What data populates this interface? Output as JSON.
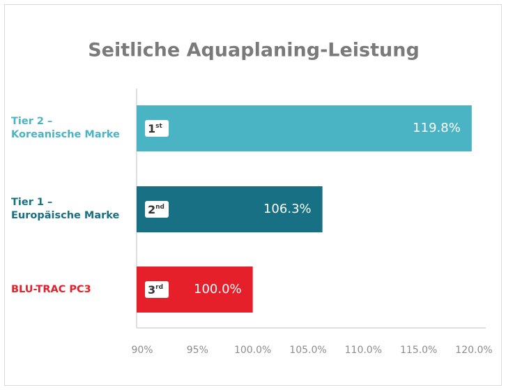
{
  "chart_data": {
    "type": "bar",
    "orientation": "horizontal",
    "title": "Seitliche Aquaplaning-Leistung",
    "categories": [
      "Tier 2 –\nKoreanische Marke",
      "Tier 1 –\nEuropäische Marke",
      "BLU-TRAC PC3"
    ],
    "values": [
      119.8,
      106.3,
      100.0
    ],
    "value_labels": [
      "119.8%",
      "106.3%",
      "100.0%"
    ],
    "ranks": [
      {
        "number": "1",
        "suffix": "st"
      },
      {
        "number": "2",
        "suffix": "nd"
      },
      {
        "number": "3",
        "suffix": "rd"
      }
    ],
    "colors": [
      "#4ab3c4",
      "#177083",
      "#e5202a"
    ],
    "xlim": [
      90,
      120
    ],
    "xticks": [
      {
        "value": 90,
        "label": "90%"
      },
      {
        "value": 95,
        "label": "95%"
      },
      {
        "value": 100,
        "label": "100.0%"
      },
      {
        "value": 105,
        "label": "105.0%"
      },
      {
        "value": 110,
        "label": "110.0%"
      },
      {
        "value": 115,
        "label": "115.0%"
      },
      {
        "value": 120,
        "label": "120.0%"
      }
    ],
    "grid": false
  }
}
